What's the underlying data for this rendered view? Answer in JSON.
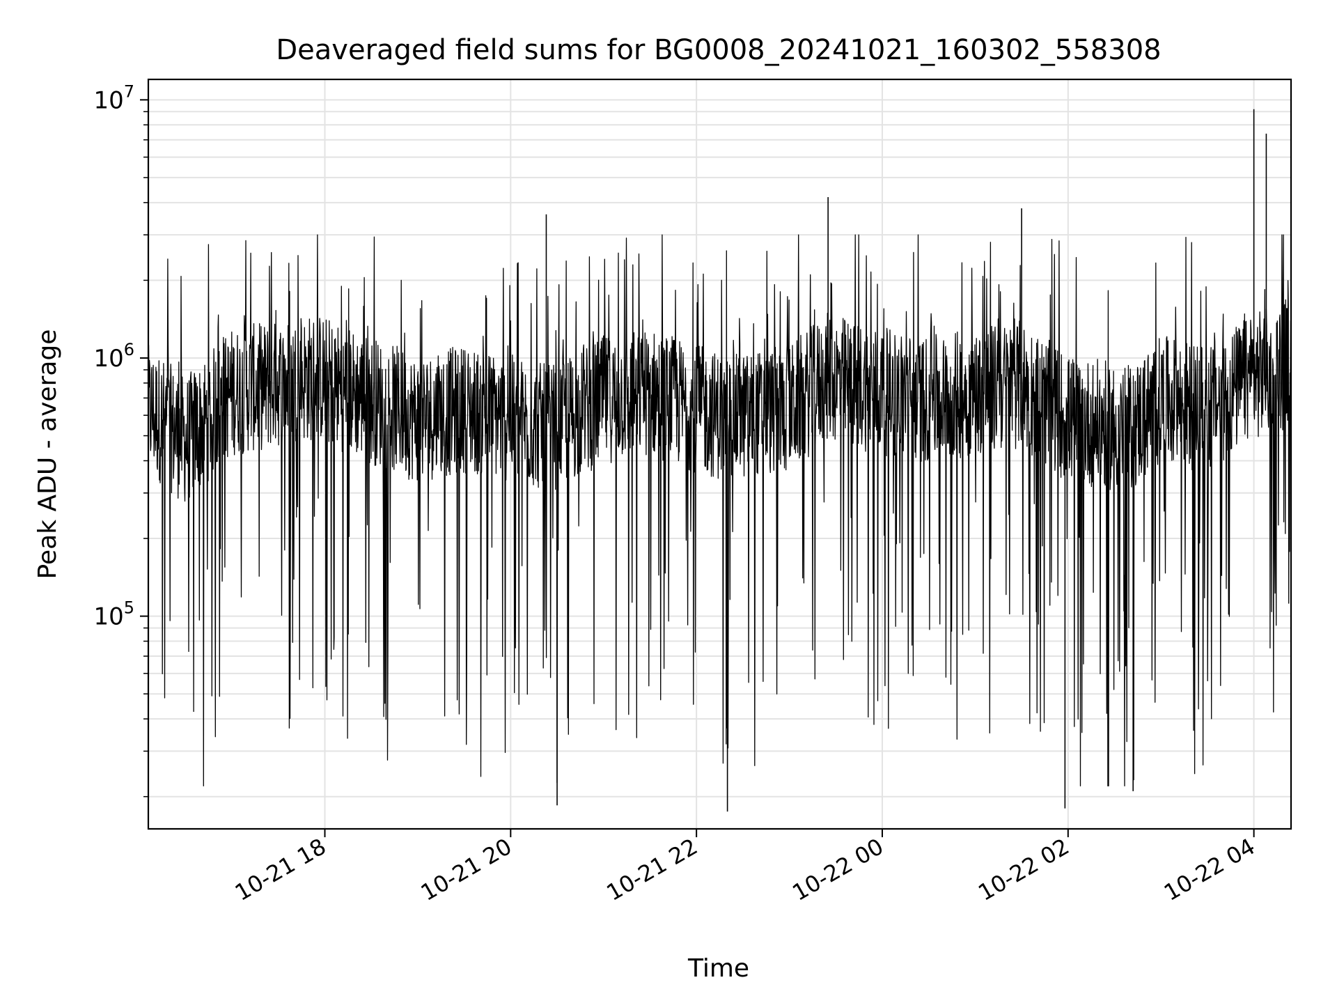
{
  "chart_data": {
    "type": "line",
    "title": "Deaveraged field sums for BG0008_20241021_160302_558308",
    "xlabel": "Time",
    "ylabel": "Peak ADU - average",
    "y_scale": "log",
    "ylim": [
      15000,
      12000000
    ],
    "xlim": [
      "2024-10-21 16:06",
      "2024-10-22 04:24"
    ],
    "x_ticks": [
      "2024-10-21 18:00",
      "2024-10-21 20:00",
      "2024-10-21 22:00",
      "2024-10-22 00:00",
      "2024-10-22 02:00",
      "2024-10-22 04:00"
    ],
    "x_tick_labels": [
      "10-21 18",
      "10-21 20",
      "10-21 22",
      "10-22 00",
      "10-22 02",
      "10-22 04"
    ],
    "y_ticks": [
      100000,
      1000000,
      10000000
    ],
    "y_tick_labels": [
      {
        "base": "10",
        "exp": "5"
      },
      {
        "base": "10",
        "exp": "6"
      },
      {
        "base": "10",
        "exp": "7"
      }
    ],
    "grid": true,
    "line_color": "#000000",
    "series": [
      {
        "x": [
          "2024-10-21 16:06",
          "2024-10-21 16:30",
          "2024-10-21 17:00",
          "2024-10-21 17:30",
          "2024-10-21 17:55",
          "2024-10-21 18:30",
          "2024-10-21 19:00",
          "2024-10-21 19:30",
          "2024-10-21 20:00",
          "2024-10-21 20:25",
          "2024-10-21 21:00",
          "2024-10-21 21:30",
          "2024-10-21 22:00",
          "2024-10-21 22:20",
          "2024-10-21 23:00",
          "2024-10-21 23:25",
          "2024-10-22 00:00",
          "2024-10-22 00:30",
          "2024-10-22 01:00",
          "2024-10-22 01:30",
          "2024-10-22 02:00",
          "2024-10-22 02:40",
          "2024-10-22 03:00",
          "2024-10-22 03:30",
          "2024-10-22 04:00",
          "2024-10-22 04:24"
        ],
        "values": [
          600000,
          450000,
          700000,
          750000,
          800000,
          650000,
          550000,
          600000,
          550000,
          500000,
          650000,
          700000,
          600000,
          550000,
          600000,
          800000,
          700000,
          650000,
          700000,
          750000,
          550000,
          500000,
          650000,
          600000,
          800000,
          900000
        ],
        "peaks": [
          {
            "x": "2024-10-21 20:23",
            "value": 3600000
          },
          {
            "x": "2024-10-21 23:25",
            "value": 4200000
          },
          {
            "x": "2024-10-22 01:30",
            "value": 3800000
          },
          {
            "x": "2024-10-22 04:00",
            "value": 9200000
          },
          {
            "x": "2024-10-22 04:08",
            "value": 7400000
          }
        ],
        "troughs": [
          {
            "x": "2024-10-21 20:30",
            "value": 18500
          },
          {
            "x": "2024-10-21 22:20",
            "value": 17500
          },
          {
            "x": "2024-10-22 01:58",
            "value": 18000
          },
          {
            "x": "2024-10-22 02:42",
            "value": 21000
          }
        ]
      }
    ]
  }
}
